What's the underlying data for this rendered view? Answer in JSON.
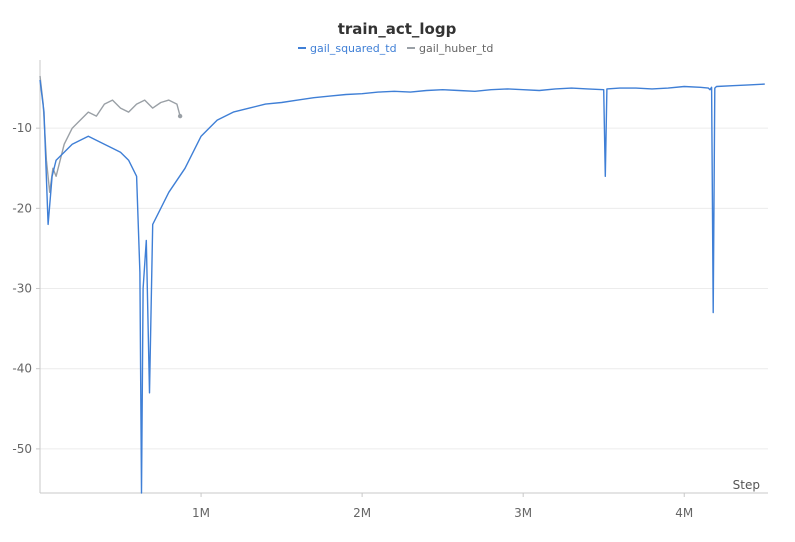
{
  "chart_data": {
    "type": "line",
    "title": "train_act_logp",
    "xlabel": "Step",
    "ylabel": "",
    "xlim": [
      0,
      4520000
    ],
    "ylim": [
      -55.5,
      -1.5
    ],
    "x_ticks": [
      {
        "value": 1000000,
        "label": "1M"
      },
      {
        "value": 2000000,
        "label": "2M"
      },
      {
        "value": 3000000,
        "label": "3M"
      },
      {
        "value": 4000000,
        "label": "4M"
      }
    ],
    "y_ticks": [
      {
        "value": -10,
        "label": "-10"
      },
      {
        "value": -20,
        "label": "-20"
      },
      {
        "value": -30,
        "label": "-30"
      },
      {
        "value": -40,
        "label": "-40"
      },
      {
        "value": -50,
        "label": "-50"
      }
    ],
    "grid": true,
    "legend": {
      "position": "top-center"
    },
    "series": [
      {
        "name": "gail_squared_td",
        "color": "#3f7fd6",
        "x": [
          0,
          25000,
          50000,
          75000,
          100000,
          150000,
          200000,
          300000,
          400000,
          450000,
          500000,
          550000,
          600000,
          620000,
          630000,
          640000,
          660000,
          680000,
          700000,
          750000,
          800000,
          900000,
          1000000,
          1100000,
          1200000,
          1300000,
          1400000,
          1500000,
          1600000,
          1700000,
          1800000,
          1900000,
          2000000,
          2100000,
          2200000,
          2300000,
          2400000,
          2500000,
          2600000,
          2700000,
          2800000,
          2900000,
          3000000,
          3100000,
          3200000,
          3300000,
          3400000,
          3500000,
          3510000,
          3520000,
          3600000,
          3700000,
          3800000,
          3900000,
          4000000,
          4100000,
          4150000,
          4160000,
          4170000,
          4180000,
          4190000,
          4200000,
          4300000,
          4400000,
          4500000
        ],
        "y": [
          -4,
          -8,
          -22,
          -16,
          -14,
          -13,
          -12,
          -11,
          -12,
          -12.5,
          -13,
          -14,
          -16,
          -28,
          -55.5,
          -30,
          -24,
          -43,
          -22,
          -20,
          -18,
          -15,
          -11,
          -9,
          -8,
          -7.5,
          -7,
          -6.8,
          -6.5,
          -6.2,
          -6,
          -5.8,
          -5.7,
          -5.5,
          -5.4,
          -5.5,
          -5.3,
          -5.2,
          -5.3,
          -5.4,
          -5.2,
          -5.1,
          -5.2,
          -5.3,
          -5.1,
          -5,
          -5.1,
          -5.2,
          -16,
          -5.1,
          -5,
          -5,
          -5.1,
          -5,
          -4.8,
          -4.9,
          -5,
          -5.2,
          -4.9,
          -33,
          -5,
          -4.8,
          -4.7,
          -4.6,
          -4.5
        ]
      },
      {
        "name": "gail_huber_td",
        "color": "#9aa0a6",
        "x": [
          0,
          20000,
          40000,
          60000,
          80000,
          100000,
          150000,
          200000,
          250000,
          300000,
          350000,
          400000,
          450000,
          500000,
          550000,
          600000,
          650000,
          700000,
          750000,
          800000,
          850000,
          870000
        ],
        "y": [
          -3.5,
          -7,
          -14,
          -18,
          -15,
          -16,
          -12,
          -10,
          -9,
          -8,
          -8.5,
          -7,
          -6.5,
          -7.5,
          -8,
          -7,
          -6.5,
          -7.5,
          -6.8,
          -6.5,
          -7,
          -8.5
        ]
      }
    ]
  }
}
